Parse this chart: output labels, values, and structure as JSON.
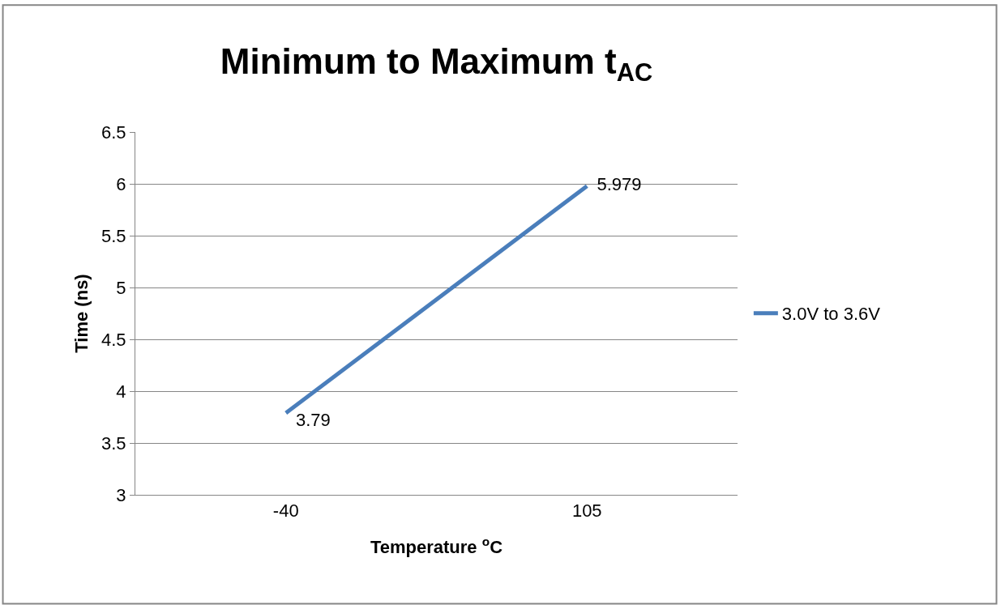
{
  "chart_data": {
    "type": "line",
    "title": "Minimum to Maximum t$_{AC}$",
    "xlabel": "Temperature $^{o}$C",
    "ylabel": "Time (ns)",
    "categories": [
      "-40",
      "105"
    ],
    "series": [
      {
        "name": "3.0V to 3.6V",
        "color": "#4a7ebb",
        "values": [
          3.79,
          5.979
        ]
      }
    ],
    "ylim": [
      3,
      6.5
    ],
    "yticks": [
      3,
      3.5,
      4,
      4.5,
      5,
      5.5,
      6,
      6.5
    ],
    "grid": "y",
    "legend": "right",
    "marker": "none",
    "line_style": "solid",
    "data_labels": true
  }
}
